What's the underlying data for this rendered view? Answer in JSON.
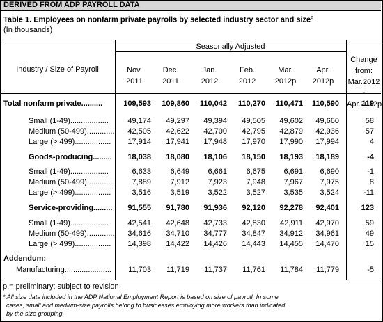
{
  "banner": "DERIVED FROM ADP PAYROLL DATA",
  "table_title_bold": "Table 1.  Employees on nonfarm private payrolls by selected industry sector and size",
  "table_title_suffix": "a",
  "table_subtitle": "(In thousands)",
  "seasonally_adjusted": "Seasonally Adjusted",
  "industry_header": "Industry / Size of Payroll",
  "columns": [
    {
      "line1": "Nov.",
      "line2": "2011"
    },
    {
      "line1": "Dec.",
      "line2": "2011"
    },
    {
      "line1": "Jan.",
      "line2": "2012"
    },
    {
      "line1": "Feb.",
      "line2": "2012"
    },
    {
      "line1": "Mar.",
      "line2": "2012p"
    },
    {
      "line1": "Apr.",
      "line2": "2012p"
    }
  ],
  "change_header": [
    "Change",
    "from:",
    "Mar.2012 -",
    "Apr.2012p"
  ],
  "rows": [
    {
      "label": "Total nonfarm private",
      "dots": "..........",
      "values": [
        "109,593",
        "109,860",
        "110,042",
        "110,270",
        "110,471",
        "110,590"
      ],
      "change": "119",
      "bold": true,
      "indent": 0
    },
    {
      "label": "Small (1-49)",
      "dots": "..................",
      "values": [
        "49,174",
        "49,297",
        "49,394",
        "49,505",
        "49,602",
        "49,660"
      ],
      "change": "58",
      "bold": false,
      "indent": 1
    },
    {
      "label": "Medium (50-499)",
      "dots": "..............",
      "values": [
        "42,505",
        "42,622",
        "42,700",
        "42,795",
        "42,879",
        "42,936"
      ],
      "change": "57",
      "bold": false,
      "indent": 1
    },
    {
      "label": "Large (> 499)",
      "dots": ".................",
      "values": [
        "17,914",
        "17,941",
        "17,948",
        "17,970",
        "17,990",
        "17,994"
      ],
      "change": "4",
      "bold": false,
      "indent": 1
    },
    {
      "label": "Goods-producing",
      "dots": ".........",
      "values": [
        "18,038",
        "18,080",
        "18,106",
        "18,150",
        "18,193",
        "18,189"
      ],
      "change": "-4",
      "bold": true,
      "indent": 2
    },
    {
      "label": "Small (1-49)",
      "dots": "..................",
      "values": [
        "6,633",
        "6,649",
        "6,661",
        "6,675",
        "6,691",
        "6,690"
      ],
      "change": "-1",
      "bold": false,
      "indent": 1
    },
    {
      "label": "Medium (50-499)",
      "dots": "..............",
      "values": [
        "7,889",
        "7,912",
        "7,923",
        "7,948",
        "7,967",
        "7,975"
      ],
      "change": "8",
      "bold": false,
      "indent": 1
    },
    {
      "label": "Large (> 499)",
      "dots": ".................",
      "values": [
        "3,516",
        "3,519",
        "3,522",
        "3,527",
        "3,535",
        "3,524"
      ],
      "change": "-11",
      "bold": false,
      "indent": 1
    },
    {
      "label": "Service-providing",
      "dots": ".........",
      "values": [
        "91,555",
        "91,780",
        "91,936",
        "92,120",
        "92,278",
        "92,401"
      ],
      "change": "123",
      "bold": true,
      "indent": 2
    },
    {
      "label": "Small (1-49)",
      "dots": "..................",
      "values": [
        "42,541",
        "42,648",
        "42,733",
        "42,830",
        "42,911",
        "42,970"
      ],
      "change": "59",
      "bold": false,
      "indent": 1
    },
    {
      "label": "Medium (50-499)",
      "dots": "..............",
      "values": [
        "34,616",
        "34,710",
        "34,777",
        "34,847",
        "34,912",
        "34,961"
      ],
      "change": "49",
      "bold": false,
      "indent": 1
    },
    {
      "label": "Large (> 499)",
      "dots": ".................",
      "values": [
        "14,398",
        "14,422",
        "14,426",
        "14,443",
        "14,455",
        "14,470"
      ],
      "change": "15",
      "bold": false,
      "indent": 1
    },
    {
      "label": "Addendum:",
      "dots": "",
      "values": [
        "",
        "",
        "",
        "",
        "",
        ""
      ],
      "change": "",
      "bold": true,
      "indent": 0
    },
    {
      "label": "Manufacturing",
      "dots": "......................",
      "values": [
        "11,703",
        "11,719",
        "11,737",
        "11,761",
        "11,784",
        "11,779"
      ],
      "change": "-5",
      "bold": false,
      "indent": 3
    }
  ],
  "footnote_p": "p = preliminary; subject to revision",
  "footnote_star_1": "* All size data included in the ADP National Employment Report is based on size of payroll.  In some",
  "footnote_star_2": "  cases, small and medium-size payrolls belong to businesses employing more workers than indicated",
  "footnote_star_3": "  by the size grouping."
}
